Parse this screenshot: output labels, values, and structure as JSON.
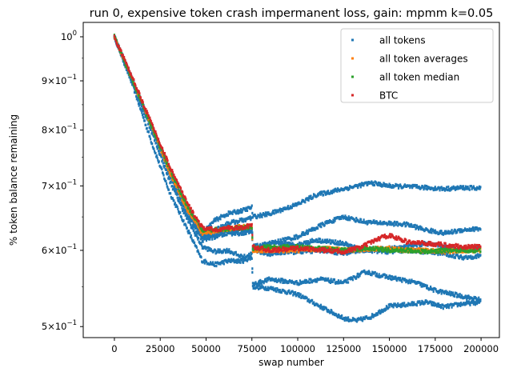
{
  "chart_data": {
    "type": "scatter",
    "title": "run 0, expensive token crash impermanent loss, gain: mpmm k=0.05",
    "xlabel": "swap number",
    "ylabel": "% token balance remaining",
    "xlim": [
      -17000,
      210000
    ],
    "ylim": [
      0.487,
      1.035
    ],
    "yscale": "log",
    "grid": false,
    "legend_position": "top-right",
    "x_ticks": [
      0,
      25000,
      50000,
      75000,
      100000,
      125000,
      150000,
      175000,
      200000
    ],
    "x_tick_labels": [
      "0",
      "25000",
      "50000",
      "75000",
      "100000",
      "125000",
      "150000",
      "175000",
      "200000"
    ],
    "y_ticks": [
      {
        "value": 1.0,
        "base": "10",
        "exp": "0"
      },
      {
        "value": 0.9,
        "base": "9×10",
        "exp": "−1"
      },
      {
        "value": 0.8,
        "base": "8×10",
        "exp": "−1"
      },
      {
        "value": 0.7,
        "base": "7×10",
        "exp": "−1"
      },
      {
        "value": 0.6,
        "base": "6×10",
        "exp": "−1"
      },
      {
        "value": 0.5,
        "base": "5×10",
        "exp": "−1"
      }
    ],
    "series": [
      {
        "name": "all tokens",
        "color": "#1f77b4",
        "tracks": [
          [
            [
              0,
              1.0
            ],
            [
              10000,
              0.89
            ],
            [
              20000,
              0.78
            ],
            [
              30000,
              0.69
            ],
            [
              40000,
              0.63
            ],
            [
              48000,
              0.585
            ],
            [
              55000,
              0.58
            ],
            [
              62000,
              0.585
            ],
            [
              70000,
              0.585
            ],
            [
              75000,
              0.59
            ],
            [
              75500,
              0.55
            ],
            [
              85000,
              0.548
            ],
            [
              100000,
              0.54
            ],
            [
              112000,
              0.525
            ],
            [
              125000,
              0.51
            ],
            [
              132000,
              0.507
            ],
            [
              140000,
              0.512
            ],
            [
              150000,
              0.525
            ],
            [
              160000,
              0.527
            ],
            [
              170000,
              0.53
            ],
            [
              180000,
              0.524
            ],
            [
              190000,
              0.528
            ],
            [
              200000,
              0.53
            ]
          ],
          [
            [
              0,
              1.0
            ],
            [
              10000,
              0.895
            ],
            [
              20000,
              0.8
            ],
            [
              30000,
              0.71
            ],
            [
              40000,
              0.645
            ],
            [
              48000,
              0.605
            ],
            [
              55000,
              0.598
            ],
            [
              62000,
              0.6
            ],
            [
              70000,
              0.59
            ],
            [
              75000,
              0.595
            ],
            [
              75500,
              0.553
            ],
            [
              85000,
              0.56
            ],
            [
              100000,
              0.555
            ],
            [
              112000,
              0.56
            ],
            [
              125000,
              0.555
            ],
            [
              137000,
              0.57
            ],
            [
              145000,
              0.565
            ],
            [
              155000,
              0.56
            ],
            [
              165000,
              0.555
            ],
            [
              175000,
              0.545
            ],
            [
              185000,
              0.54
            ],
            [
              195000,
              0.535
            ],
            [
              200000,
              0.533
            ]
          ],
          [
            [
              0,
              1.0
            ],
            [
              10000,
              0.9
            ],
            [
              20000,
              0.81
            ],
            [
              30000,
              0.73
            ],
            [
              40000,
              0.665
            ],
            [
              48000,
              0.625
            ],
            [
              55000,
              0.645
            ],
            [
              62000,
              0.655
            ],
            [
              70000,
              0.66
            ],
            [
              75000,
              0.665
            ],
            [
              75500,
              0.65
            ],
            [
              85000,
              0.655
            ],
            [
              100000,
              0.67
            ],
            [
              110000,
              0.685
            ],
            [
              125000,
              0.695
            ],
            [
              140000,
              0.705
            ],
            [
              150000,
              0.7
            ],
            [
              165000,
              0.698
            ],
            [
              180000,
              0.695
            ],
            [
              190000,
              0.697
            ],
            [
              200000,
              0.696
            ]
          ],
          [
            [
              0,
              1.0
            ],
            [
              10000,
              0.9
            ],
            [
              20000,
              0.81
            ],
            [
              30000,
              0.725
            ],
            [
              40000,
              0.66
            ],
            [
              48000,
              0.62
            ],
            [
              55000,
              0.63
            ],
            [
              62000,
              0.64
            ],
            [
              70000,
              0.645
            ],
            [
              75000,
              0.648
            ],
            [
              75500,
              0.6
            ],
            [
              85000,
              0.61
            ],
            [
              100000,
              0.62
            ],
            [
              115000,
              0.64
            ],
            [
              125000,
              0.65
            ],
            [
              137000,
              0.642
            ],
            [
              150000,
              0.64
            ],
            [
              160000,
              0.638
            ],
            [
              170000,
              0.63
            ],
            [
              180000,
              0.625
            ],
            [
              190000,
              0.63
            ],
            [
              200000,
              0.632
            ]
          ],
          [
            [
              0,
              1.0
            ],
            [
              10000,
              0.9
            ],
            [
              20000,
              0.81
            ],
            [
              30000,
              0.72
            ],
            [
              40000,
              0.65
            ],
            [
              48000,
              0.615
            ],
            [
              55000,
              0.62
            ],
            [
              62000,
              0.625
            ],
            [
              70000,
              0.625
            ],
            [
              75000,
              0.628
            ],
            [
              75500,
              0.605
            ],
            [
              85000,
              0.61
            ],
            [
              100000,
              0.608
            ],
            [
              110000,
              0.615
            ],
            [
              125000,
              0.61
            ],
            [
              135000,
              0.6
            ],
            [
              150000,
              0.603
            ],
            [
              160000,
              0.605
            ],
            [
              170000,
              0.61
            ],
            [
              180000,
              0.605
            ],
            [
              190000,
              0.6
            ],
            [
              200000,
              0.605
            ]
          ],
          [
            [
              0,
              1.0
            ],
            [
              10000,
              0.9
            ],
            [
              20000,
              0.81
            ],
            [
              30000,
              0.725
            ],
            [
              40000,
              0.655
            ],
            [
              48000,
              0.62
            ],
            [
              55000,
              0.622
            ],
            [
              62000,
              0.63
            ],
            [
              70000,
              0.63
            ],
            [
              75000,
              0.63
            ],
            [
              75500,
              0.6
            ],
            [
              85000,
              0.595
            ],
            [
              100000,
              0.598
            ],
            [
              115000,
              0.6
            ],
            [
              125000,
              0.595
            ],
            [
              135000,
              0.6
            ],
            [
              150000,
              0.598
            ],
            [
              160000,
              0.6
            ],
            [
              170000,
              0.598
            ],
            [
              180000,
              0.595
            ],
            [
              190000,
              0.59
            ],
            [
              200000,
              0.592
            ]
          ]
        ]
      },
      {
        "name": "all token averages",
        "color": "#ff7f0e",
        "tracks": [
          [
            [
              0,
              1.0
            ],
            [
              10000,
              0.9
            ],
            [
              20000,
              0.81
            ],
            [
              30000,
              0.725
            ],
            [
              40000,
              0.66
            ],
            [
              48000,
              0.625
            ],
            [
              55000,
              0.628
            ],
            [
              62000,
              0.632
            ],
            [
              70000,
              0.635
            ],
            [
              75000,
              0.635
            ],
            [
              75500,
              0.6
            ],
            [
              85000,
              0.6
            ],
            [
              100000,
              0.6
            ],
            [
              115000,
              0.603
            ],
            [
              125000,
              0.6
            ],
            [
              140000,
              0.602
            ],
            [
              150000,
              0.603
            ],
            [
              160000,
              0.6
            ],
            [
              170000,
              0.6
            ],
            [
              180000,
              0.598
            ],
            [
              190000,
              0.6
            ],
            [
              200000,
              0.6
            ]
          ]
        ]
      },
      {
        "name": "all token median",
        "color": "#2ca02c",
        "tracks": [
          [
            [
              0,
              1.0
            ],
            [
              10000,
              0.9
            ],
            [
              20000,
              0.81
            ],
            [
              30000,
              0.73
            ],
            [
              40000,
              0.665
            ],
            [
              48000,
              0.63
            ],
            [
              55000,
              0.63
            ],
            [
              62000,
              0.632
            ],
            [
              70000,
              0.633
            ],
            [
              75000,
              0.635
            ],
            [
              75500,
              0.603
            ],
            [
              85000,
              0.605
            ],
            [
              100000,
              0.605
            ],
            [
              115000,
              0.602
            ],
            [
              125000,
              0.6
            ],
            [
              140000,
              0.603
            ],
            [
              150000,
              0.6
            ],
            [
              160000,
              0.6
            ],
            [
              170000,
              0.598
            ],
            [
              180000,
              0.6
            ],
            [
              190000,
              0.6
            ],
            [
              200000,
              0.6
            ]
          ]
        ]
      },
      {
        "name": "BTC",
        "color": "#d62728",
        "tracks": [
          [
            [
              0,
              1.0
            ],
            [
              10000,
              0.905
            ],
            [
              20000,
              0.815
            ],
            [
              30000,
              0.735
            ],
            [
              40000,
              0.67
            ],
            [
              48000,
              0.633
            ],
            [
              55000,
              0.63
            ],
            [
              62000,
              0.633
            ],
            [
              70000,
              0.633
            ],
            [
              75000,
              0.638
            ],
            [
              75500,
              0.605
            ],
            [
              85000,
              0.6
            ],
            [
              100000,
              0.603
            ],
            [
              115000,
              0.6
            ],
            [
              125000,
              0.598
            ],
            [
              135000,
              0.605
            ],
            [
              145000,
              0.618
            ],
            [
              150000,
              0.622
            ],
            [
              160000,
              0.612
            ],
            [
              170000,
              0.61
            ],
            [
              180000,
              0.608
            ],
            [
              190000,
              0.605
            ],
            [
              200000,
              0.605
            ]
          ]
        ]
      }
    ]
  }
}
